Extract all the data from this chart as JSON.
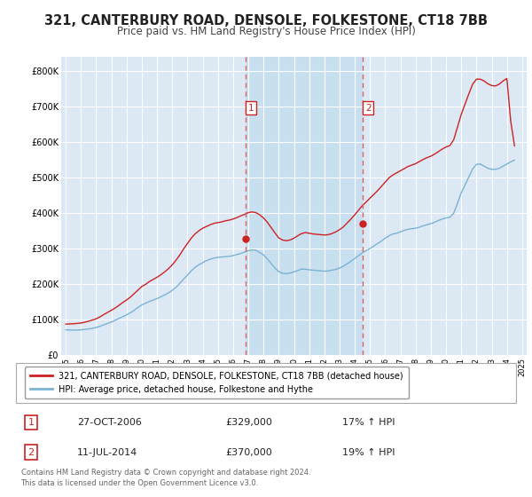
{
  "title": "321, CANTERBURY ROAD, DENSOLE, FOLKESTONE, CT18 7BB",
  "subtitle": "Price paid vs. HM Land Registry's House Price Index (HPI)",
  "title_fontsize": 10.5,
  "subtitle_fontsize": 8.5,
  "bg_color": "#ffffff",
  "plot_bg_color": "#dce9f5",
  "highlight_bg_color": "#c8dff0",
  "grid_color": "#ffffff",
  "ylabel_ticks": [
    "£0",
    "£100K",
    "£200K",
    "£300K",
    "£400K",
    "£500K",
    "£600K",
    "£700K",
    "£800K"
  ],
  "ytick_values": [
    0,
    100000,
    200000,
    300000,
    400000,
    500000,
    600000,
    700000,
    800000
  ],
  "ylim": [
    0,
    840000
  ],
  "xlim_start": 1994.7,
  "xlim_end": 2025.3,
  "xtick_years": [
    1995,
    1996,
    1997,
    1998,
    1999,
    2000,
    2001,
    2002,
    2003,
    2004,
    2005,
    2006,
    2007,
    2008,
    2009,
    2010,
    2011,
    2012,
    2013,
    2014,
    2015,
    2016,
    2017,
    2018,
    2019,
    2020,
    2021,
    2022,
    2023,
    2024,
    2025
  ],
  "hpi_color": "#7ab3d4",
  "price_color": "#cc2222",
  "sale1_x": 2006.82,
  "sale1_y": 329000,
  "sale2_x": 2014.53,
  "sale2_y": 370000,
  "vline_color": "#e06060",
  "marker_color": "#cc2222",
  "legend_label_red": "321, CANTERBURY ROAD, DENSOLE, FOLKESTONE, CT18 7BB (detached house)",
  "legend_label_blue": "HPI: Average price, detached house, Folkestone and Hythe",
  "annotation1_label": "1",
  "annotation2_label": "2",
  "table_row1": [
    "1",
    "27-OCT-2006",
    "£329,000",
    "17% ↑ HPI"
  ],
  "table_row2": [
    "2",
    "11-JUL-2014",
    "£370,000",
    "19% ↑ HPI"
  ],
  "footer": "Contains HM Land Registry data © Crown copyright and database right 2024.\nThis data is licensed under the Open Government Licence v3.0.",
  "hpi_data_x": [
    1995.0,
    1995.25,
    1995.5,
    1995.75,
    1996.0,
    1996.25,
    1996.5,
    1996.75,
    1997.0,
    1997.25,
    1997.5,
    1997.75,
    1998.0,
    1998.25,
    1998.5,
    1998.75,
    1999.0,
    1999.25,
    1999.5,
    1999.75,
    2000.0,
    2000.25,
    2000.5,
    2000.75,
    2001.0,
    2001.25,
    2001.5,
    2001.75,
    2002.0,
    2002.25,
    2002.5,
    2002.75,
    2003.0,
    2003.25,
    2003.5,
    2003.75,
    2004.0,
    2004.25,
    2004.5,
    2004.75,
    2005.0,
    2005.25,
    2005.5,
    2005.75,
    2006.0,
    2006.25,
    2006.5,
    2006.75,
    2007.0,
    2007.25,
    2007.5,
    2007.75,
    2008.0,
    2008.25,
    2008.5,
    2008.75,
    2009.0,
    2009.25,
    2009.5,
    2009.75,
    2010.0,
    2010.25,
    2010.5,
    2010.75,
    2011.0,
    2011.25,
    2011.5,
    2011.75,
    2012.0,
    2012.25,
    2012.5,
    2012.75,
    2013.0,
    2013.25,
    2013.5,
    2013.75,
    2014.0,
    2014.25,
    2014.5,
    2014.75,
    2015.0,
    2015.25,
    2015.5,
    2015.75,
    2016.0,
    2016.25,
    2016.5,
    2016.75,
    2017.0,
    2017.25,
    2017.5,
    2017.75,
    2018.0,
    2018.25,
    2018.5,
    2018.75,
    2019.0,
    2019.25,
    2019.5,
    2019.75,
    2020.0,
    2020.25,
    2020.5,
    2020.75,
    2021.0,
    2021.25,
    2021.5,
    2021.75,
    2022.0,
    2022.25,
    2022.5,
    2022.75,
    2023.0,
    2023.25,
    2023.5,
    2023.75,
    2024.0,
    2024.25,
    2024.5
  ],
  "hpi_data_y": [
    72000,
    71500,
    71000,
    71500,
    72000,
    73000,
    74500,
    76000,
    78500,
    82000,
    86000,
    90000,
    94000,
    99000,
    104000,
    109000,
    114000,
    120000,
    127000,
    135000,
    142000,
    147000,
    152000,
    156000,
    160000,
    165000,
    170000,
    176000,
    183000,
    192000,
    203000,
    215000,
    226000,
    238000,
    248000,
    255000,
    261000,
    267000,
    271000,
    274000,
    276000,
    277000,
    278000,
    279000,
    281000,
    284000,
    287000,
    291000,
    295000,
    297000,
    296000,
    290000,
    283000,
    272000,
    259000,
    246000,
    236000,
    231000,
    230000,
    232000,
    235000,
    239000,
    243000,
    243000,
    241000,
    240000,
    239000,
    238000,
    237000,
    238000,
    240000,
    242000,
    246000,
    251000,
    258000,
    265000,
    273000,
    281000,
    289000,
    295000,
    301000,
    308000,
    315000,
    322000,
    330000,
    337000,
    342000,
    344000,
    348000,
    352000,
    355000,
    357000,
    358000,
    361000,
    365000,
    368000,
    371000,
    375000,
    380000,
    384000,
    387000,
    389000,
    400000,
    428000,
    458000,
    480000,
    503000,
    525000,
    538000,
    539000,
    533000,
    527000,
    524000,
    524000,
    527000,
    533000,
    539000,
    545000,
    550000
  ],
  "price_data_x": [
    1995.0,
    1995.25,
    1995.5,
    1995.75,
    1996.0,
    1996.25,
    1996.5,
    1996.75,
    1997.0,
    1997.25,
    1997.5,
    1997.75,
    1998.0,
    1998.25,
    1998.5,
    1998.75,
    1999.0,
    1999.25,
    1999.5,
    1999.75,
    2000.0,
    2000.25,
    2000.5,
    2000.75,
    2001.0,
    2001.25,
    2001.5,
    2001.75,
    2002.0,
    2002.25,
    2002.5,
    2002.75,
    2003.0,
    2003.25,
    2003.5,
    2003.75,
    2004.0,
    2004.25,
    2004.5,
    2004.75,
    2005.0,
    2005.25,
    2005.5,
    2005.75,
    2006.0,
    2006.25,
    2006.5,
    2006.75,
    2007.0,
    2007.25,
    2007.5,
    2007.75,
    2008.0,
    2008.25,
    2008.5,
    2008.75,
    2009.0,
    2009.25,
    2009.5,
    2009.75,
    2010.0,
    2010.25,
    2010.5,
    2010.75,
    2011.0,
    2011.25,
    2011.5,
    2011.75,
    2012.0,
    2012.25,
    2012.5,
    2012.75,
    2013.0,
    2013.25,
    2013.5,
    2013.75,
    2014.0,
    2014.25,
    2014.5,
    2014.75,
    2015.0,
    2015.25,
    2015.5,
    2015.75,
    2016.0,
    2016.25,
    2016.5,
    2016.75,
    2017.0,
    2017.25,
    2017.5,
    2017.75,
    2018.0,
    2018.25,
    2018.5,
    2018.75,
    2019.0,
    2019.25,
    2019.5,
    2019.75,
    2020.0,
    2020.25,
    2020.5,
    2020.75,
    2021.0,
    2021.25,
    2021.5,
    2021.75,
    2022.0,
    2022.25,
    2022.5,
    2022.75,
    2023.0,
    2023.25,
    2023.5,
    2023.75,
    2024.0,
    2024.25,
    2024.5
  ],
  "price_data_y": [
    88000,
    88500,
    89000,
    90000,
    91000,
    93500,
    96000,
    99500,
    103000,
    108500,
    115000,
    121000,
    127000,
    133500,
    141000,
    149000,
    156000,
    164000,
    174000,
    184000,
    194000,
    200000,
    208000,
    214000,
    220000,
    227000,
    235000,
    244000,
    255000,
    268000,
    283000,
    300000,
    315000,
    330000,
    342000,
    351000,
    358000,
    363000,
    368000,
    372000,
    374000,
    376000,
    379000,
    381000,
    384000,
    388000,
    393000,
    397000,
    402000,
    404000,
    402000,
    396000,
    387000,
    375000,
    360000,
    345000,
    331000,
    325000,
    323000,
    325000,
    330000,
    337000,
    343000,
    346000,
    344000,
    342000,
    341000,
    340000,
    339000,
    340000,
    343000,
    348000,
    354000,
    362000,
    373000,
    384000,
    396000,
    409000,
    422000,
    432000,
    443000,
    453000,
    464000,
    476000,
    488000,
    500000,
    508000,
    514000,
    520000,
    526000,
    532000,
    536000,
    540000,
    546000,
    552000,
    557000,
    561000,
    567000,
    574000,
    581000,
    587000,
    591000,
    607000,
    643000,
    679000,
    708000,
    737000,
    764000,
    778000,
    778000,
    773000,
    765000,
    760000,
    759000,
    764000,
    773000,
    780000,
    660000,
    590000
  ]
}
